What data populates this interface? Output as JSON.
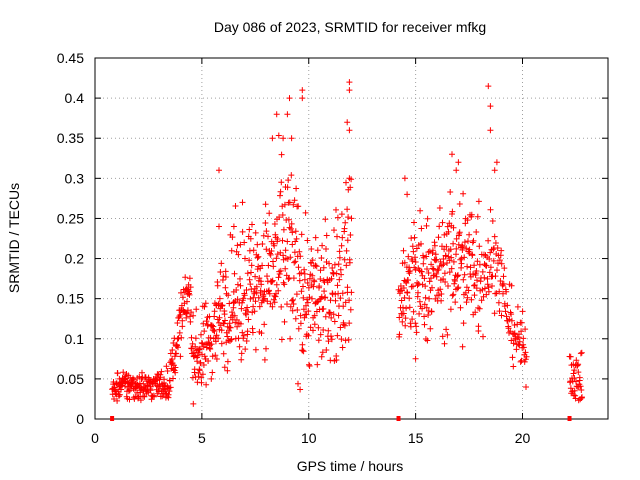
{
  "chart_data": {
    "type": "scatter",
    "title": "Day 086 of 2023, SRMTID for receiver mfkg",
    "xlabel": "GPS time / hours",
    "ylabel": "SRMTID / TECUs",
    "xlim": [
      0,
      24
    ],
    "ylim": [
      0,
      0.45
    ],
    "grid": true,
    "marker": "+",
    "color": "#ff0000",
    "xticks": [
      0,
      5,
      10,
      15,
      20
    ],
    "xtick_labels": [
      "0",
      "5",
      "10",
      "15",
      "20"
    ],
    "yticks": [
      0,
      0.05,
      0.1,
      0.15,
      0.2,
      0.25,
      0.3,
      0.35,
      0.4,
      0.45
    ],
    "ytick_labels": [
      "0",
      "0.05",
      "0.1",
      "0.15",
      "0.2",
      "0.25",
      "0.3",
      "0.35",
      "0.4",
      "0.45"
    ],
    "zero_markers_x": [
      0.8,
      14.2,
      22.2
    ],
    "series": [
      {
        "name": "SRMTID",
        "segments": [
          {
            "start": 0.8,
            "end": 3.5,
            "profile": [
              [
                0.8,
                0.04,
                0.01
              ],
              [
                1.6,
                0.042,
                0.012
              ],
              [
                2.5,
                0.04,
                0.01
              ],
              [
                3.5,
                0.045,
                0.012
              ]
            ],
            "count": 180
          },
          {
            "start": 3.5,
            "end": 4.5,
            "profile": [
              [
                3.5,
                0.05,
                0.015
              ],
              [
                4.0,
                0.12,
                0.02
              ],
              [
                4.4,
                0.16,
                0.02
              ],
              [
                4.5,
                0.15,
                0.02
              ]
            ],
            "count": 70
          },
          {
            "start": 4.5,
            "end": 6.0,
            "profile": [
              [
                4.5,
                0.08,
                0.025
              ],
              [
                5.0,
                0.08,
                0.03
              ],
              [
                5.5,
                0.11,
                0.03
              ],
              [
                6.0,
                0.14,
                0.04
              ]
            ],
            "count": 110
          },
          {
            "start": 6.0,
            "end": 9.0,
            "profile": [
              [
                6.0,
                0.14,
                0.04
              ],
              [
                7.0,
                0.16,
                0.05
              ],
              [
                8.0,
                0.18,
                0.05
              ],
              [
                9.0,
                0.2,
                0.07
              ]
            ],
            "count": 220
          },
          {
            "start": 9.0,
            "end": 12.0,
            "profile": [
              [
                9.0,
                0.2,
                0.08
              ],
              [
                10.0,
                0.15,
                0.05
              ],
              [
                11.0,
                0.15,
                0.05
              ],
              [
                12.0,
                0.2,
                0.07
              ]
            ],
            "count": 220
          },
          {
            "start": 14.2,
            "end": 18.0,
            "profile": [
              [
                14.2,
                0.15,
                0.04
              ],
              [
                15.0,
                0.17,
                0.05
              ],
              [
                16.0,
                0.18,
                0.04
              ],
              [
                17.0,
                0.2,
                0.05
              ],
              [
                18.0,
                0.19,
                0.06
              ]
            ],
            "count": 260
          },
          {
            "start": 18.0,
            "end": 20.2,
            "profile": [
              [
                18.0,
                0.19,
                0.05
              ],
              [
                18.8,
                0.2,
                0.03
              ],
              [
                19.4,
                0.12,
                0.025
              ],
              [
                20.2,
                0.08,
                0.02
              ]
            ],
            "count": 120
          },
          {
            "start": 22.2,
            "end": 22.8,
            "profile": [
              [
                22.2,
                0.06,
                0.02
              ],
              [
                22.8,
                0.045,
                0.015
              ]
            ],
            "count": 40
          }
        ],
        "highlights": [
          [
            5.8,
            0.31
          ],
          [
            6.9,
            0.27
          ],
          [
            8.3,
            0.35
          ],
          [
            8.5,
            0.38
          ],
          [
            8.8,
            0.35
          ],
          [
            9.0,
            0.38
          ],
          [
            9.1,
            0.4
          ],
          [
            9.2,
            0.35
          ],
          [
            9.7,
            0.41
          ],
          [
            9.7,
            0.4
          ],
          [
            11.9,
            0.42
          ],
          [
            11.9,
            0.41
          ],
          [
            11.8,
            0.37
          ],
          [
            11.9,
            0.36
          ],
          [
            11.9,
            0.3
          ],
          [
            14.5,
            0.3
          ],
          [
            14.6,
            0.28
          ],
          [
            16.7,
            0.33
          ],
          [
            16.9,
            0.31
          ],
          [
            17.0,
            0.32
          ],
          [
            18.4,
            0.415
          ],
          [
            18.5,
            0.39
          ],
          [
            18.5,
            0.36
          ],
          [
            18.8,
            0.32
          ],
          [
            18.7,
            0.31
          ],
          [
            12.0,
            0.25
          ],
          [
            15.0,
            0.075
          ],
          [
            17.2,
            0.09
          ],
          [
            5.8,
            0.24
          ],
          [
            6.5,
            0.24
          ]
        ]
      }
    ]
  }
}
